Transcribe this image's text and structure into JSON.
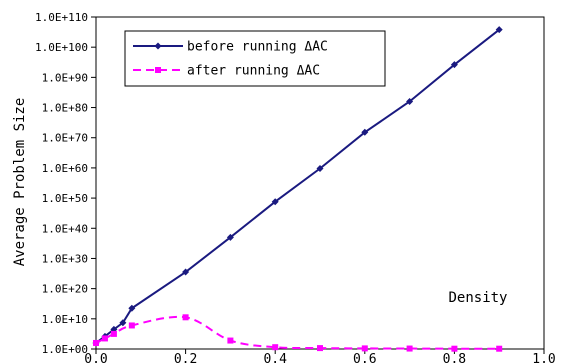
{
  "chart_data": {
    "type": "line",
    "xlabel": "Density",
    "ylabel": "Average Problem Size",
    "xlim": [
      0,
      1
    ],
    "x_ticks": [
      "0.0",
      "0.2",
      "0.4",
      "0.6",
      "0.8",
      "1.0"
    ],
    "y_exponent_lim": [
      0,
      110
    ],
    "y_scale": "log",
    "y_ticks": [
      "1.0E+00",
      "1.0E+10",
      "1.0E+20",
      "1.0E+30",
      "1.0E+40",
      "1.0E+50",
      "1.0E+60",
      "1.0E+70",
      "1.0E+80",
      "1.0E+90",
      "1.0E+100",
      "1.0E+110"
    ],
    "grid": false,
    "legend_position": "top-left",
    "series": [
      {
        "name": "before running ΔAC",
        "color": "#1a1a80",
        "line_style": "solid",
        "marker": "diamond",
        "x": [
          0.0,
          0.02,
          0.04,
          0.06,
          0.08,
          0.2,
          0.3,
          0.4,
          0.5,
          0.6,
          0.7,
          0.8,
          0.9
        ],
        "y_exponent": [
          2.0,
          4.2,
          6.5,
          8.7,
          13.5,
          25.5,
          37,
          48.8,
          59.8,
          71.8,
          82,
          94.2,
          105.8
        ]
      },
      {
        "name": "after running ΔAC",
        "color": "#ff00ff",
        "line_style": "dashed",
        "marker": "square",
        "x": [
          0.0,
          0.02,
          0.04,
          0.08,
          0.2,
          0.3,
          0.4,
          0.5,
          0.6,
          0.7,
          0.8,
          0.9
        ],
        "y_exponent": [
          2.0,
          3.5,
          5.0,
          7.8,
          10.5,
          2.8,
          0.6,
          0.3,
          0.2,
          0.15,
          0.1,
          0.1
        ]
      }
    ]
  }
}
